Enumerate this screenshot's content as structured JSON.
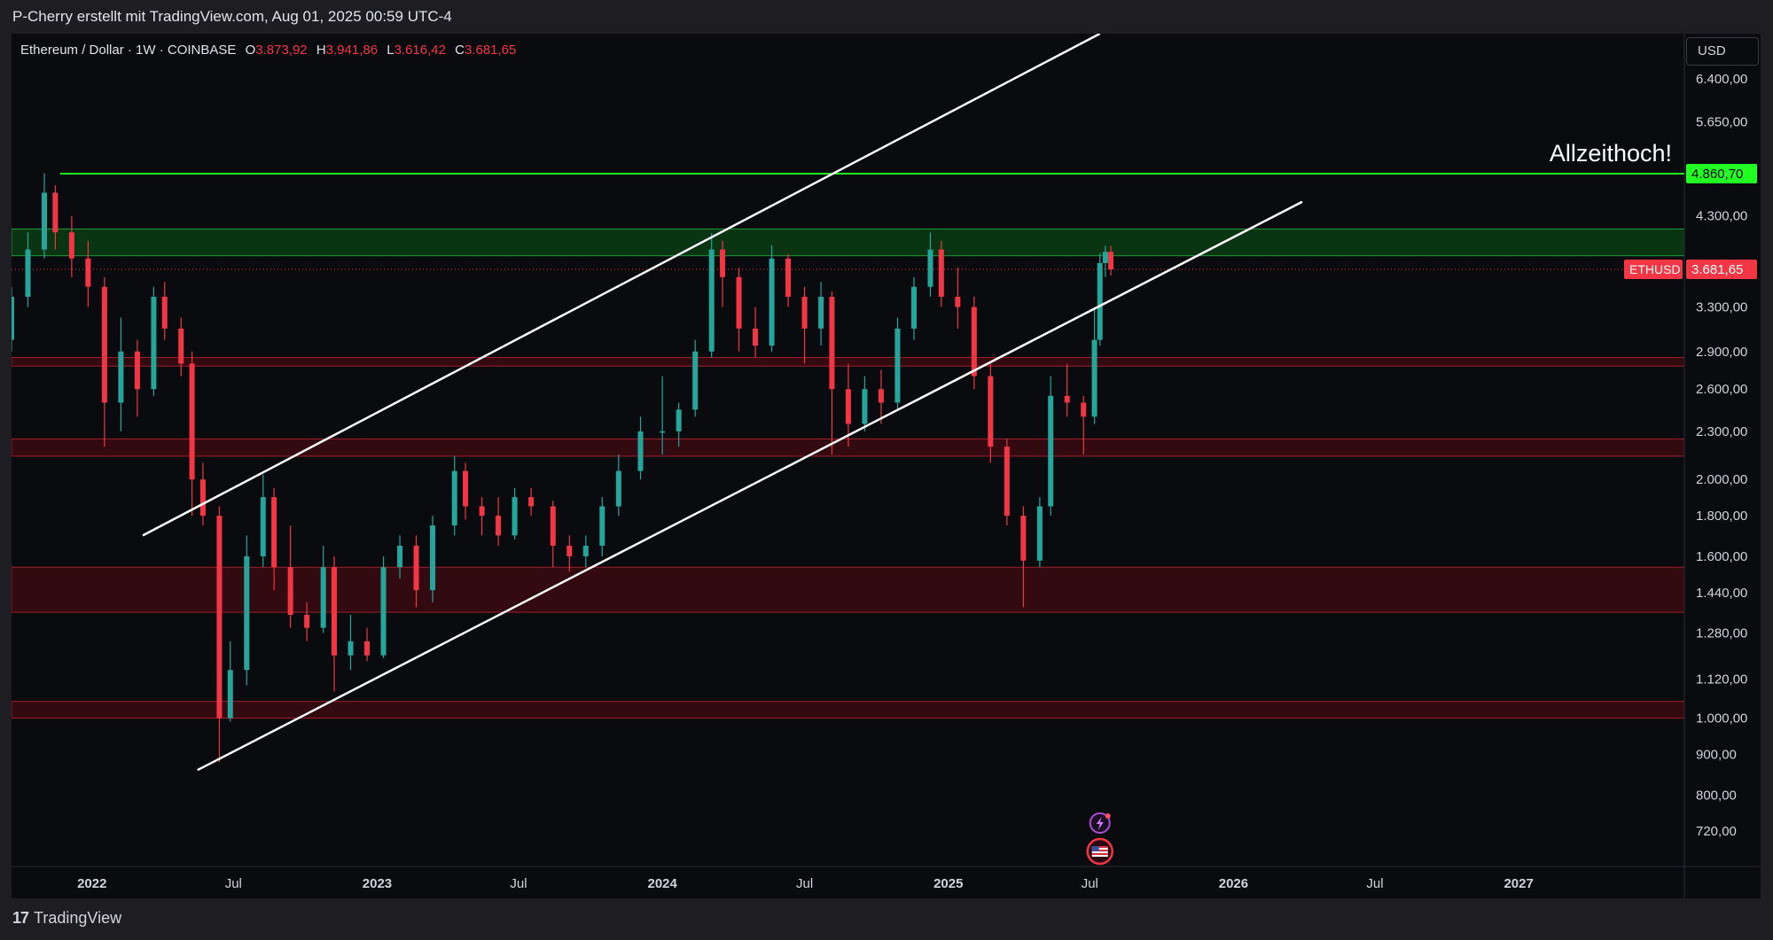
{
  "header": {
    "attribution": "P-Cherry erstellt mit TradingView.com, Aug 01, 2025 00:59 UTC-4"
  },
  "symbol": {
    "title": "Ethereum / Dollar · 1W · COINBASE",
    "open_label": "O",
    "open": "3.873,92",
    "high_label": "H",
    "high": "3.941,86",
    "low_label": "L",
    "low": "3.616,42",
    "close_label": "C",
    "close": "3.681,65"
  },
  "currency": "USD",
  "annotation": "Allzeithoch!",
  "footer": {
    "brand": "TradingView",
    "logo": "17"
  },
  "colors": {
    "up": "#26a69a",
    "down": "#f23645",
    "ath": "#22ff22",
    "green_zone": "#0b3d14",
    "red_zone": "#3a0a10"
  },
  "icons": [
    "lightning-event-icon",
    "us-flag-event-icon"
  ],
  "chart_data": {
    "type": "candlestick",
    "title": "",
    "xlabel": "",
    "ylabel": "",
    "y_scale": "log",
    "ylim": [
      650,
      7300
    ],
    "x_range": [
      "2021-09-20",
      "2027-08-01"
    ],
    "x_ticks": [
      {
        "label": "2022",
        "date": "2022-01-01"
      },
      {
        "label": "Jul",
        "date": "2022-07-01"
      },
      {
        "label": "2023",
        "date": "2023-01-01"
      },
      {
        "label": "Jul",
        "date": "2023-07-01"
      },
      {
        "label": "2024",
        "date": "2024-01-01"
      },
      {
        "label": "Jul",
        "date": "2024-07-01"
      },
      {
        "label": "2025",
        "date": "2025-01-01"
      },
      {
        "label": "Jul",
        "date": "2025-07-01"
      },
      {
        "label": "2026",
        "date": "2026-01-01"
      },
      {
        "label": "Jul",
        "date": "2026-07-01"
      },
      {
        "label": "2027",
        "date": "2027-01-01"
      }
    ],
    "y_ticks": [
      {
        "label": "6.400,00",
        "value": 6400
      },
      {
        "label": "5.650,00",
        "value": 5650
      },
      {
        "label": "4.300,00",
        "value": 4300
      },
      {
        "label": "3.300,00",
        "value": 3300
      },
      {
        "label": "2.900,00",
        "value": 2900
      },
      {
        "label": "2.600,00",
        "value": 2600
      },
      {
        "label": "2.300,00",
        "value": 2300
      },
      {
        "label": "2.000,00",
        "value": 2000
      },
      {
        "label": "1.800,00",
        "value": 1800
      },
      {
        "label": "1.600,00",
        "value": 1600
      },
      {
        "label": "1.440,00",
        "value": 1440
      },
      {
        "label": "1.280,00",
        "value": 1280
      },
      {
        "label": "1.120,00",
        "value": 1120
      },
      {
        "label": "1.000,00",
        "value": 1000
      },
      {
        "label": "900,00",
        "value": 900
      },
      {
        "label": "800,00",
        "value": 800
      },
      {
        "label": "720,00",
        "value": 720
      }
    ],
    "price_labels": [
      {
        "label": "4.860,70",
        "value": 4860.7,
        "color": "#22ff22",
        "text_color": "#000000"
      },
      {
        "label": "3.681,65",
        "value": 3681.65,
        "color": "#f23645",
        "text_color": "#ffffff",
        "tag": "ETHUSD"
      }
    ],
    "ath_line": 4860.7,
    "zones": [
      {
        "low": 3830,
        "high": 4140,
        "color": "green"
      },
      {
        "low": 2780,
        "high": 2850,
        "color": "red"
      },
      {
        "low": 2140,
        "high": 2250,
        "color": "red"
      },
      {
        "low": 1360,
        "high": 1550,
        "color": "red"
      },
      {
        "low": 1000,
        "high": 1050,
        "color": "red"
      }
    ],
    "trendlines": [
      {
        "from": {
          "date": "2022-03-07",
          "price": 1700
        },
        "to": {
          "date": "2025-07-14",
          "price": 7300
        }
      },
      {
        "from": {
          "date": "2022-05-16",
          "price": 860
        },
        "to": {
          "date": "2026-03-30",
          "price": 4480
        }
      }
    ],
    "series": [
      {
        "x": "2021-09-20",
        "o": 3000,
        "h": 3500,
        "l": 2900,
        "c": 3400
      },
      {
        "x": "2021-10-11",
        "o": 3400,
        "h": 4100,
        "l": 3300,
        "c": 3900
      },
      {
        "x": "2021-11-01",
        "o": 3900,
        "h": 4868,
        "l": 3800,
        "c": 4600
      },
      {
        "x": "2021-11-15",
        "o": 4600,
        "h": 4700,
        "l": 3900,
        "c": 4100
      },
      {
        "x": "2021-12-06",
        "o": 4100,
        "h": 4300,
        "l": 3600,
        "c": 3800
      },
      {
        "x": "2021-12-27",
        "o": 3800,
        "h": 4000,
        "l": 3300,
        "c": 3500
      },
      {
        "x": "2022-01-17",
        "o": 3500,
        "h": 3600,
        "l": 2200,
        "c": 2500
      },
      {
        "x": "2022-02-07",
        "o": 2500,
        "h": 3200,
        "l": 2300,
        "c": 2900
      },
      {
        "x": "2022-02-28",
        "o": 2900,
        "h": 3000,
        "l": 2400,
        "c": 2600
      },
      {
        "x": "2022-03-21",
        "o": 2600,
        "h": 3500,
        "l": 2550,
        "c": 3400
      },
      {
        "x": "2022-04-04",
        "o": 3400,
        "h": 3550,
        "l": 3000,
        "c": 3100
      },
      {
        "x": "2022-04-25",
        "o": 3100,
        "h": 3200,
        "l": 2700,
        "c": 2800
      },
      {
        "x": "2022-05-09",
        "o": 2800,
        "h": 2900,
        "l": 1800,
        "c": 2000
      },
      {
        "x": "2022-05-23",
        "o": 2000,
        "h": 2100,
        "l": 1750,
        "c": 1800
      },
      {
        "x": "2022-06-13",
        "o": 1800,
        "h": 1850,
        "l": 880,
        "c": 1000
      },
      {
        "x": "2022-06-27",
        "o": 1000,
        "h": 1250,
        "l": 990,
        "c": 1150
      },
      {
        "x": "2022-07-18",
        "o": 1150,
        "h": 1700,
        "l": 1100,
        "c": 1600
      },
      {
        "x": "2022-08-08",
        "o": 1600,
        "h": 2030,
        "l": 1550,
        "c": 1900
      },
      {
        "x": "2022-08-22",
        "o": 1900,
        "h": 1950,
        "l": 1450,
        "c": 1550
      },
      {
        "x": "2022-09-12",
        "o": 1550,
        "h": 1750,
        "l": 1300,
        "c": 1350
      },
      {
        "x": "2022-10-03",
        "o": 1350,
        "h": 1400,
        "l": 1250,
        "c": 1300
      },
      {
        "x": "2022-10-24",
        "o": 1300,
        "h": 1650,
        "l": 1280,
        "c": 1550
      },
      {
        "x": "2022-11-07",
        "o": 1550,
        "h": 1600,
        "l": 1080,
        "c": 1200
      },
      {
        "x": "2022-11-28",
        "o": 1200,
        "h": 1350,
        "l": 1150,
        "c": 1250
      },
      {
        "x": "2022-12-19",
        "o": 1250,
        "h": 1300,
        "l": 1180,
        "c": 1200
      },
      {
        "x": "2023-01-09",
        "o": 1200,
        "h": 1600,
        "l": 1190,
        "c": 1550
      },
      {
        "x": "2023-01-30",
        "o": 1550,
        "h": 1700,
        "l": 1500,
        "c": 1650
      },
      {
        "x": "2023-02-20",
        "o": 1650,
        "h": 1700,
        "l": 1380,
        "c": 1450
      },
      {
        "x": "2023-03-13",
        "o": 1450,
        "h": 1800,
        "l": 1400,
        "c": 1750
      },
      {
        "x": "2023-04-10",
        "o": 1750,
        "h": 2140,
        "l": 1700,
        "c": 2050
      },
      {
        "x": "2023-04-24",
        "o": 2050,
        "h": 2100,
        "l": 1780,
        "c": 1850
      },
      {
        "x": "2023-05-15",
        "o": 1850,
        "h": 1900,
        "l": 1700,
        "c": 1800
      },
      {
        "x": "2023-06-05",
        "o": 1800,
        "h": 1900,
        "l": 1650,
        "c": 1700
      },
      {
        "x": "2023-06-26",
        "o": 1700,
        "h": 1950,
        "l": 1680,
        "c": 1900
      },
      {
        "x": "2023-07-17",
        "o": 1900,
        "h": 1950,
        "l": 1800,
        "c": 1850
      },
      {
        "x": "2023-08-14",
        "o": 1850,
        "h": 1880,
        "l": 1550,
        "c": 1650
      },
      {
        "x": "2023-09-04",
        "o": 1650,
        "h": 1700,
        "l": 1530,
        "c": 1600
      },
      {
        "x": "2023-09-25",
        "o": 1600,
        "h": 1700,
        "l": 1550,
        "c": 1650
      },
      {
        "x": "2023-10-16",
        "o": 1650,
        "h": 1900,
        "l": 1600,
        "c": 1850
      },
      {
        "x": "2023-11-06",
        "o": 1850,
        "h": 2150,
        "l": 1800,
        "c": 2050
      },
      {
        "x": "2023-12-04",
        "o": 2050,
        "h": 2400,
        "l": 2000,
        "c": 2300
      },
      {
        "x": "2024-01-01",
        "o": 2300,
        "h": 2700,
        "l": 2150,
        "c": 2300
      },
      {
        "x": "2024-01-22",
        "o": 2300,
        "h": 2500,
        "l": 2200,
        "c": 2450
      },
      {
        "x": "2024-02-12",
        "o": 2450,
        "h": 3000,
        "l": 2400,
        "c": 2900
      },
      {
        "x": "2024-03-04",
        "o": 2900,
        "h": 4090,
        "l": 2850,
        "c": 3900
      },
      {
        "x": "2024-03-18",
        "o": 3900,
        "h": 4000,
        "l": 3300,
        "c": 3600
      },
      {
        "x": "2024-04-08",
        "o": 3600,
        "h": 3700,
        "l": 2900,
        "c": 3100
      },
      {
        "x": "2024-04-29",
        "o": 3100,
        "h": 3300,
        "l": 2850,
        "c": 2950
      },
      {
        "x": "2024-05-20",
        "o": 2950,
        "h": 3950,
        "l": 2900,
        "c": 3800
      },
      {
        "x": "2024-06-10",
        "o": 3800,
        "h": 3850,
        "l": 3300,
        "c": 3400
      },
      {
        "x": "2024-07-01",
        "o": 3400,
        "h": 3500,
        "l": 2800,
        "c": 3100
      },
      {
        "x": "2024-07-22",
        "o": 3100,
        "h": 3550,
        "l": 2950,
        "c": 3400
      },
      {
        "x": "2024-08-05",
        "o": 3400,
        "h": 3450,
        "l": 2150,
        "c": 2600
      },
      {
        "x": "2024-08-26",
        "o": 2600,
        "h": 2800,
        "l": 2200,
        "c": 2350
      },
      {
        "x": "2024-09-16",
        "o": 2350,
        "h": 2700,
        "l": 2300,
        "c": 2600
      },
      {
        "x": "2024-10-07",
        "o": 2600,
        "h": 2750,
        "l": 2350,
        "c": 2500
      },
      {
        "x": "2024-10-28",
        "o": 2500,
        "h": 3200,
        "l": 2450,
        "c": 3100
      },
      {
        "x": "2024-11-18",
        "o": 3100,
        "h": 3600,
        "l": 3000,
        "c": 3500
      },
      {
        "x": "2024-12-09",
        "o": 3500,
        "h": 4100,
        "l": 3400,
        "c": 3900
      },
      {
        "x": "2024-12-23",
        "o": 3900,
        "h": 4000,
        "l": 3300,
        "c": 3400
      },
      {
        "x": "2025-01-13",
        "o": 3400,
        "h": 3700,
        "l": 3100,
        "c": 3300
      },
      {
        "x": "2025-02-03",
        "o": 3300,
        "h": 3400,
        "l": 2600,
        "c": 2700
      },
      {
        "x": "2025-02-24",
        "o": 2700,
        "h": 2800,
        "l": 2100,
        "c": 2200
      },
      {
        "x": "2025-03-17",
        "o": 2200,
        "h": 2250,
        "l": 1750,
        "c": 1800
      },
      {
        "x": "2025-04-07",
        "o": 1800,
        "h": 1850,
        "l": 1380,
        "c": 1580
      },
      {
        "x": "2025-04-28",
        "o": 1580,
        "h": 1900,
        "l": 1550,
        "c": 1850
      },
      {
        "x": "2025-05-12",
        "o": 1850,
        "h": 2700,
        "l": 1800,
        "c": 2550
      },
      {
        "x": "2025-06-02",
        "o": 2550,
        "h": 2800,
        "l": 2400,
        "c": 2500
      },
      {
        "x": "2025-06-23",
        "o": 2500,
        "h": 2550,
        "l": 2150,
        "c": 2400
      },
      {
        "x": "2025-07-07",
        "o": 2400,
        "h": 3300,
        "l": 2350,
        "c": 3000
      },
      {
        "x": "2025-07-14",
        "o": 3000,
        "h": 3860,
        "l": 2950,
        "c": 3750
      },
      {
        "x": "2025-07-21",
        "o": 3750,
        "h": 3941.86,
        "l": 3600,
        "c": 3873.92
      },
      {
        "x": "2025-07-28",
        "o": 3873.92,
        "h": 3941.86,
        "l": 3616.42,
        "c": 3681.65
      }
    ]
  }
}
